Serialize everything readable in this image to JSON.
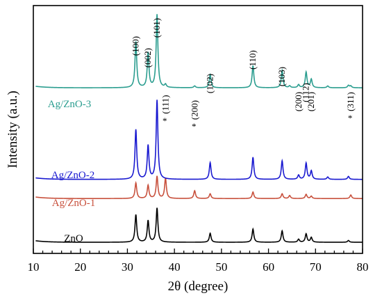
{
  "chart_data": {
    "type": "line",
    "xlabel": "2θ (degree)",
    "ylabel": "Intensity (a.u.)",
    "xlim": [
      10,
      80
    ],
    "xticks": [
      10,
      20,
      30,
      40,
      50,
      60,
      70,
      80
    ],
    "tick_labels": [
      "10",
      "20",
      "30",
      "40",
      "50",
      "60",
      "70",
      "80"
    ],
    "grid": false,
    "y_ticks_shown": false,
    "series": [
      {
        "name": "ZnO",
        "color": "#000000",
        "baseline": 0,
        "peaks": [
          [
            31.8,
            0.46
          ],
          [
            34.4,
            0.36
          ],
          [
            36.3,
            0.57
          ],
          [
            47.6,
            0.15
          ],
          [
            56.7,
            0.22
          ],
          [
            62.9,
            0.19
          ],
          [
            66.4,
            0.05
          ],
          [
            68.0,
            0.14
          ],
          [
            69.1,
            0.08
          ],
          [
            77.0,
            0.03
          ]
        ]
      },
      {
        "name": "Ag/ZnO-1",
        "color": "#c8503c",
        "baseline": 0.73,
        "peaks": [
          [
            31.8,
            0.26
          ],
          [
            34.4,
            0.22
          ],
          [
            36.3,
            0.37
          ],
          [
            38.1,
            0.34
          ],
          [
            44.3,
            0.13
          ],
          [
            47.6,
            0.08
          ],
          [
            56.7,
            0.11
          ],
          [
            62.9,
            0.08
          ],
          [
            64.5,
            0.05
          ],
          [
            68.0,
            0.07
          ],
          [
            69.1,
            0.04
          ],
          [
            77.5,
            0.06
          ]
        ]
      },
      {
        "name": "Ag/ZnO-2",
        "color": "#1818d0",
        "baseline": 1.05,
        "peaks": [
          [
            31.8,
            0.83
          ],
          [
            34.4,
            0.56
          ],
          [
            36.3,
            1.32
          ],
          [
            47.6,
            0.28
          ],
          [
            56.7,
            0.37
          ],
          [
            62.9,
            0.31
          ],
          [
            66.4,
            0.07
          ],
          [
            68.0,
            0.27
          ],
          [
            69.1,
            0.14
          ],
          [
            72.6,
            0.04
          ],
          [
            77.0,
            0.05
          ]
        ]
      },
      {
        "name": "Ag/ZnO-3",
        "color": "#2a9d8f",
        "baseline": 2.58,
        "peaks": [
          [
            31.8,
            0.77
          ],
          [
            34.4,
            0.58
          ],
          [
            36.3,
            1.22
          ],
          [
            38.1,
            0.05
          ],
          [
            44.3,
            0.03
          ],
          [
            47.6,
            0.22
          ],
          [
            56.7,
            0.37
          ],
          [
            62.9,
            0.29
          ],
          [
            64.5,
            0.03
          ],
          [
            66.4,
            0.05
          ],
          [
            68.0,
            0.26
          ],
          [
            69.1,
            0.14
          ],
          [
            72.6,
            0.03
          ],
          [
            77.0,
            0.04
          ],
          [
            77.5,
            0.03
          ]
        ]
      }
    ],
    "peak_annotations": [
      {
        "text": "(100)",
        "x": 31.8,
        "star": false
      },
      {
        "text": "(002)",
        "x": 34.4,
        "star": false
      },
      {
        "text": "(101)",
        "x": 36.3,
        "star": false
      },
      {
        "text": "(111)",
        "x": 38.1,
        "star": true
      },
      {
        "text": "(200)",
        "x": 44.3,
        "star": true
      },
      {
        "text": "(102)",
        "x": 47.6,
        "star": false
      },
      {
        "text": "(110)",
        "x": 56.7,
        "star": false
      },
      {
        "text": "(103)",
        "x": 62.9,
        "star": false
      },
      {
        "text": "(200)",
        "x": 66.4,
        "star": false
      },
      {
        "text": "(112)",
        "x": 68.0,
        "star": false
      },
      {
        "text": "(201)",
        "x": 69.1,
        "star": false
      },
      {
        "text": "(311)",
        "x": 77.5,
        "star": true
      }
    ],
    "star_symbol": "*"
  }
}
